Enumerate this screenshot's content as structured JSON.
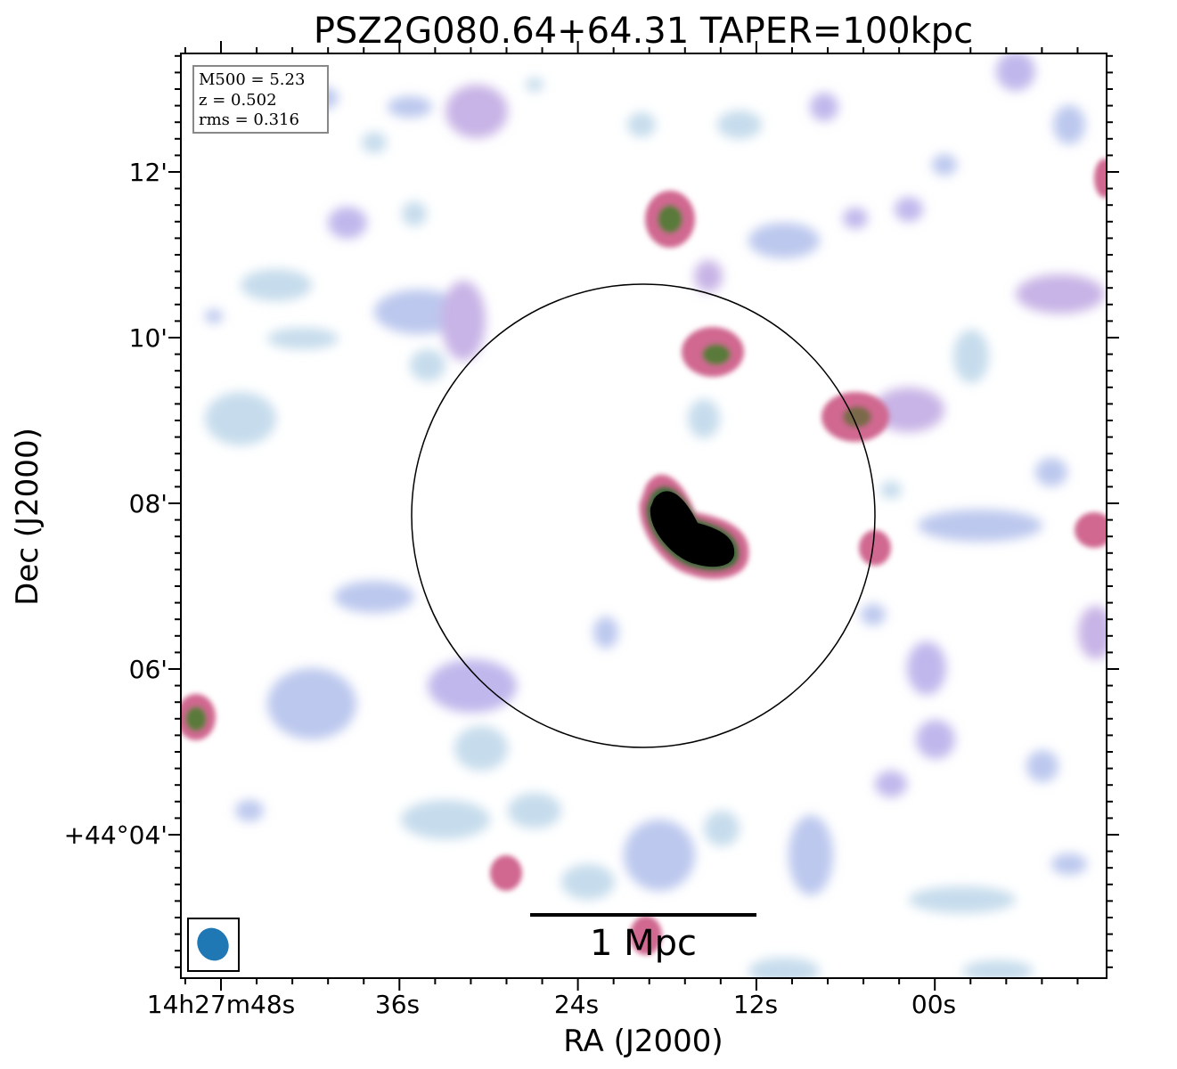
{
  "title": "PSZ2G080.64+64.31 TAPER=100kpc",
  "xlabel": "RA (J2000)",
  "ylabel": "Dec (J2000)",
  "info": {
    "m500": "M500 = 5.23",
    "z": "z = 0.502",
    "rms": "rms = 0.316"
  },
  "scalebar_label": "1 Mpc",
  "x_ticks": [
    "14h27m48s",
    "36s",
    "24s",
    "12s",
    "00s"
  ],
  "y_ticks": [
    "12'",
    "10'",
    "08'",
    "06'",
    "+44°04'"
  ],
  "colors": {
    "faint": "#cfe8ea",
    "low": "#b8c4ee",
    "mid": "#c8a0d8",
    "high": "#d06890",
    "peak": "#5a7a3a",
    "core": "#000000",
    "beam": "#1f77b4",
    "frame": "#000000"
  },
  "chart_data": {
    "type": "heatmap",
    "title": "PSZ2G080.64+64.31 TAPER=100kpc",
    "xlabel": "RA (J2000)",
    "ylabel": "Dec (J2000)",
    "x_tick_labels": [
      "14h27m48s",
      "36s",
      "24s",
      "12s",
      "00s"
    ],
    "y_tick_labels": [
      "12'",
      "10'",
      "08'",
      "06'",
      "+44°04'"
    ],
    "annotations": [
      "M500 = 5.23",
      "z = 0.502",
      "rms = 0.316",
      "1 Mpc"
    ],
    "colormap": "cubehelix-like (white → cyan → lavender → pink → green → black)",
    "grid": false
  }
}
